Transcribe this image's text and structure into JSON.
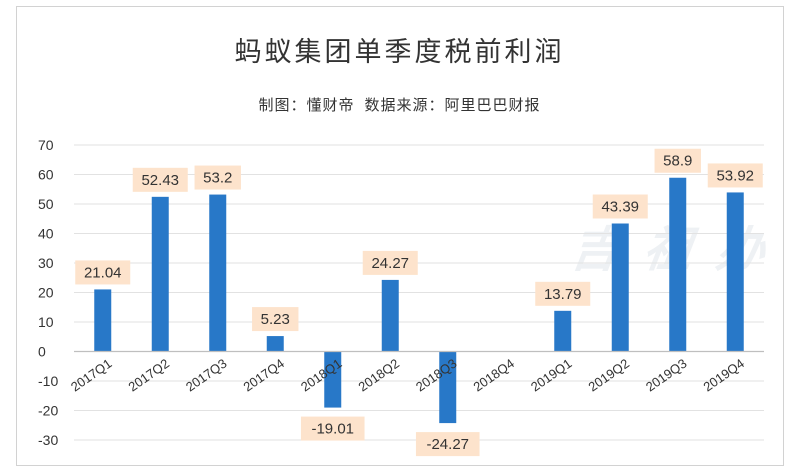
{
  "chart_data": {
    "type": "bar",
    "title": "蚂蚁集团单季度税前利润",
    "subtitle": "制图：懂财帝  数据来源：阿里巴巴财报",
    "watermark": "吉 祖 办",
    "categories": [
      "2017Q1",
      "2017Q2",
      "2017Q3",
      "2017Q4",
      "2018Q1",
      "2018Q2",
      "2018Q3",
      "2018Q4",
      "2019Q1",
      "2019Q2",
      "2019Q3",
      "2019Q4"
    ],
    "values": [
      21.04,
      52.43,
      53.2,
      5.23,
      -19.01,
      24.27,
      -24.27,
      null,
      13.79,
      43.39,
      58.9,
      53.92
    ],
    "data_labels": [
      "21.04",
      "52.43",
      "53.2",
      "5.23",
      "-19.01",
      "24.27",
      "-24.27",
      "",
      "13.79",
      "43.39",
      "58.9",
      "53.92"
    ],
    "y_ticks": [
      70,
      60,
      50,
      40,
      30,
      20,
      10,
      0,
      -10,
      -20,
      -30
    ],
    "ylim": [
      -30,
      70
    ],
    "xlabel": "",
    "ylabel": "",
    "grid": true,
    "colors": {
      "bar": "#2878c8",
      "label_bg": "#fde3cc",
      "grid": "#e2e2e2",
      "axis": "#bfbfbf",
      "text": "#333333"
    }
  }
}
